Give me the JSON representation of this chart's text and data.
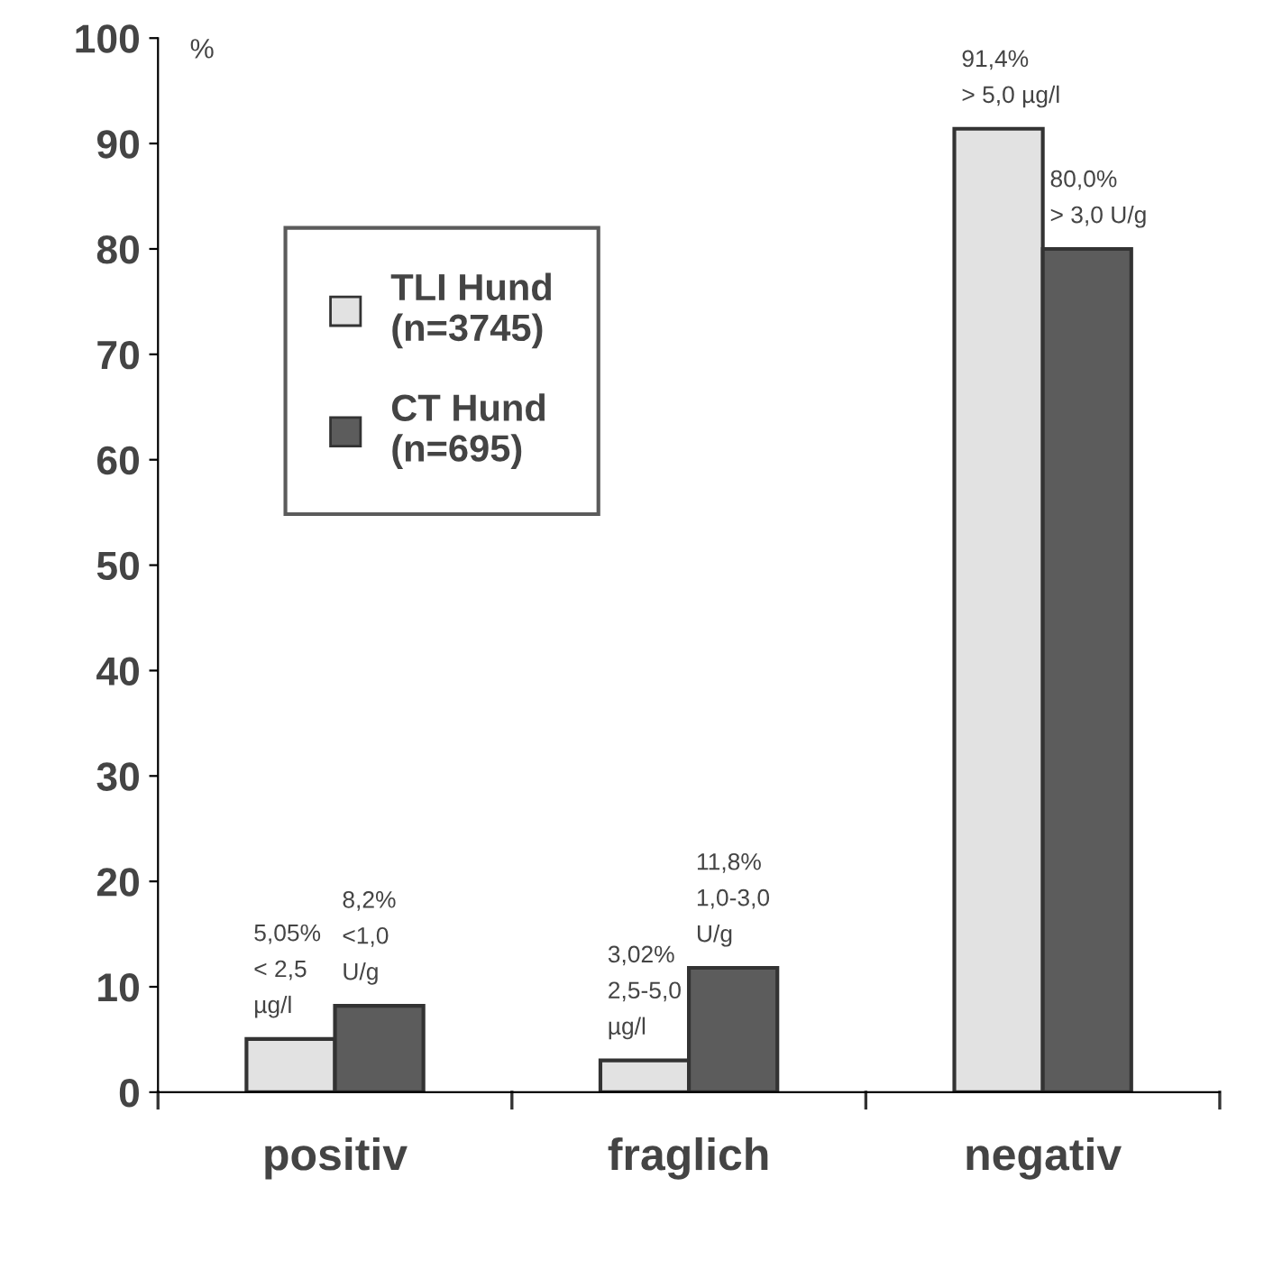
{
  "chart_data": {
    "type": "bar",
    "ylabel": "%",
    "categories": [
      "positiv",
      "fraglich",
      "negativ"
    ],
    "series": [
      {
        "name": "TLI Hund\n(n=3745)",
        "color": "#e2e2e2",
        "values": [
          5.05,
          3.02,
          91.4
        ],
        "value_labels": [
          "5,05%\n< 2,5\nµg/l",
          "3,02%\n2,5-5,0\nµg/l",
          "91,4%\n> 5,0 µg/l"
        ]
      },
      {
        "name": "CT Hund\n(n=695)",
        "color": "#5c5c5c",
        "values": [
          8.2,
          11.8,
          80.0
        ],
        "value_labels": [
          "8,2%\n<1,0\nU/g",
          "11,8%\n1,0-3,0\nU/g",
          "80,0%\n> 3,0 U/g"
        ]
      }
    ],
    "ylim": [
      0,
      100
    ],
    "yticks": [
      0,
      10,
      20,
      30,
      40,
      50,
      60,
      70,
      80,
      90,
      100
    ],
    "grid": false,
    "legend": "top left"
  }
}
